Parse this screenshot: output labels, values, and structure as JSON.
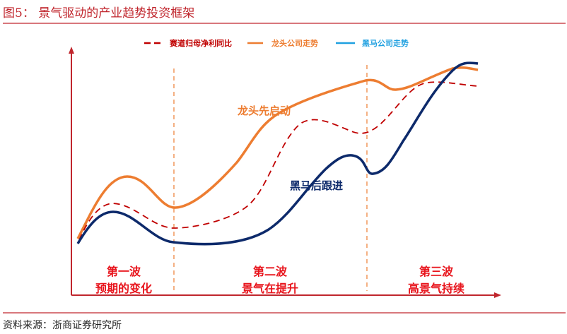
{
  "title": "图5：  景气驱动的产业趋势投资框架",
  "source": "资料来源：浙商证券研究所",
  "legend": [
    {
      "label": "赛道归母净利同比",
      "color": "#c00000",
      "style": "dashed"
    },
    {
      "label": "龙头公司走势",
      "color": "#ed7d31",
      "style": "solid"
    },
    {
      "label": "黑马公司走势",
      "color": "#1fa0e0",
      "style": "solid"
    }
  ],
  "annotations": {
    "leader": "龙头先启动",
    "darkhorse": "黑马后跟进"
  },
  "waves": [
    {
      "name": "第一波",
      "desc": "预期的变化"
    },
    {
      "name": "第二波",
      "desc": "景气在提升"
    },
    {
      "name": "第三波",
      "desc": "高景气持续"
    }
  ],
  "colors": {
    "accent": "#c0262d",
    "leader": "#ed7d31",
    "darkhorse_line": "#0d2a6b",
    "profit": "#c00000",
    "wave_text": "#e8141c"
  }
}
